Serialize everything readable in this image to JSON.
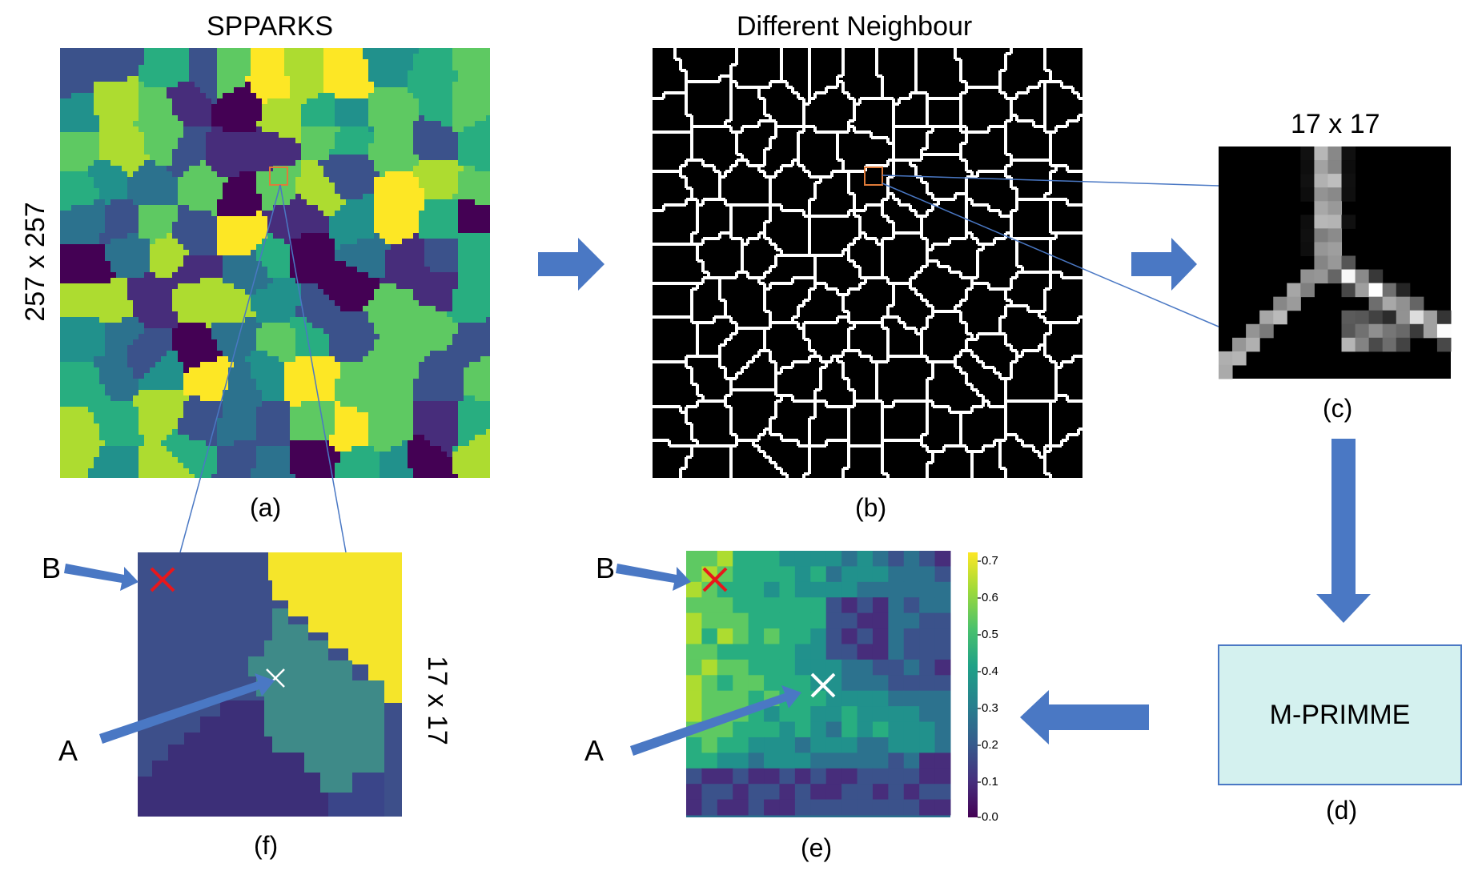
{
  "labels": {
    "panel_a_title": "SPPARKS",
    "panel_a_size": "257 x 257",
    "panel_b_title": "Different Neighbour",
    "panel_c_size": "17 x 17",
    "panel_f_size": "17 x 17",
    "model_name": "M-PRIMME"
  },
  "captions": {
    "a": "(a)",
    "b": "(b)",
    "c": "(c)",
    "d": "(d)",
    "e": "(e)",
    "f": "(f)"
  },
  "markers": {
    "point_a": "A",
    "point_b": "B"
  },
  "colorbar": {
    "ticks": [
      "0.7",
      "0.6",
      "0.5",
      "0.4",
      "0.3",
      "0.2",
      "0.1",
      "0.0"
    ]
  },
  "colors": {
    "arrow": "#4a78c4",
    "zoom_box": "#e07b39",
    "marker_b": "#e8171b",
    "marker_a": "#ffffff",
    "model_box": "#d4f1ef"
  }
}
